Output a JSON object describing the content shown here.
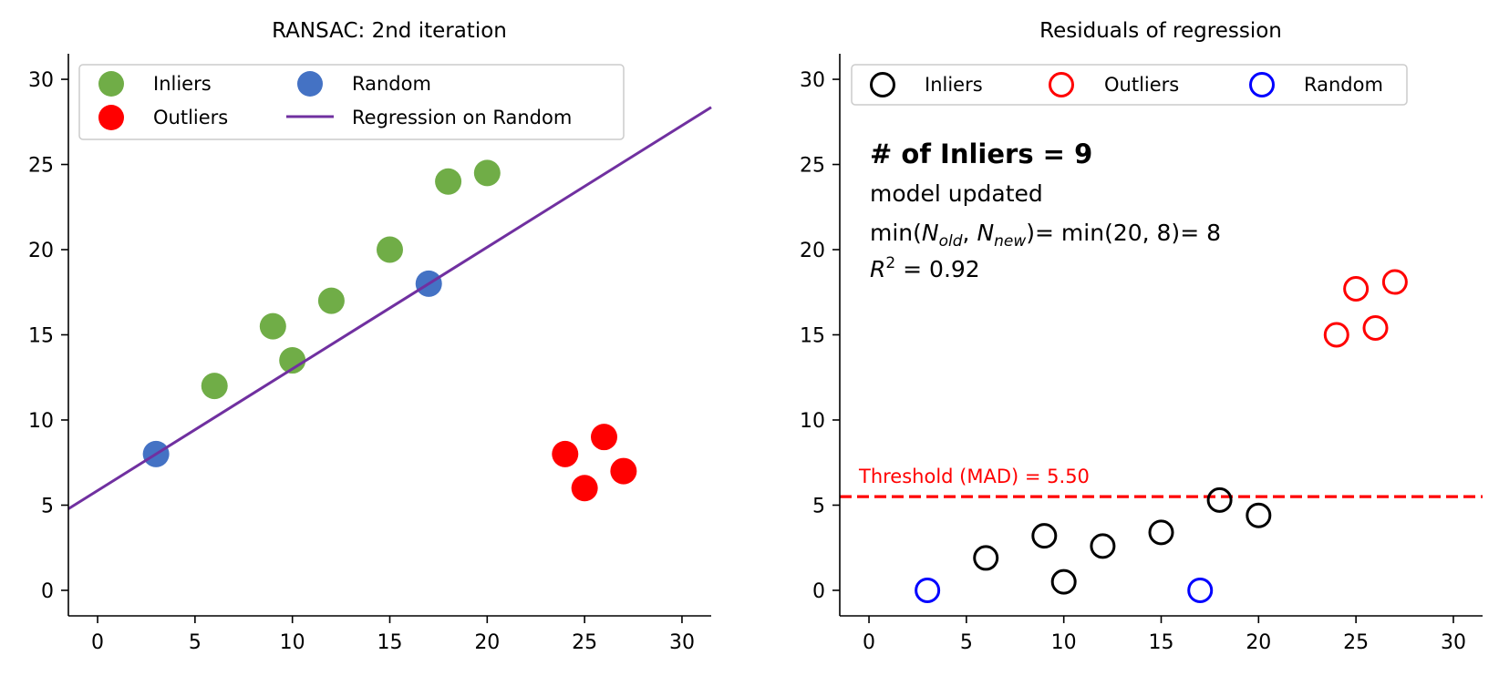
{
  "chart_data": [
    {
      "type": "scatter",
      "title": "RANSAC: 2nd iteration",
      "xlabel": "",
      "ylabel": "",
      "xlim": [
        -1.5,
        31.5
      ],
      "ylim": [
        -1.5,
        31.5
      ],
      "xticks": [
        0,
        5,
        10,
        15,
        20,
        25,
        30
      ],
      "yticks": [
        0,
        5,
        10,
        15,
        20,
        25,
        30
      ],
      "grid": false,
      "legend": {
        "placement": "top-left",
        "columns": 2,
        "entries": [
          {
            "label": "Inliers",
            "kind": "marker-filled",
            "color": "#70ad47"
          },
          {
            "label": "Outliers",
            "kind": "marker-filled",
            "color": "#ff0000"
          },
          {
            "label": "Random",
            "kind": "marker-filled",
            "color": "#4472c4"
          },
          {
            "label": "Regression on Random",
            "kind": "line",
            "color": "#7030a0"
          }
        ]
      },
      "series": [
        {
          "name": "Inliers",
          "color": "#70ad47",
          "points": [
            [
              6,
              12
            ],
            [
              9,
              15.5
            ],
            [
              10,
              13.5
            ],
            [
              12,
              17
            ],
            [
              15,
              20
            ],
            [
              18,
              24
            ],
            [
              20,
              24.5
            ]
          ]
        },
        {
          "name": "Outliers",
          "color": "#ff0000",
          "points": [
            [
              24,
              8
            ],
            [
              25,
              6
            ],
            [
              26,
              9
            ],
            [
              27,
              7
            ]
          ]
        },
        {
          "name": "Random",
          "color": "#4472c4",
          "points": [
            [
              3,
              8
            ],
            [
              17,
              18
            ]
          ]
        },
        {
          "name": "Regression on Random",
          "type": "line",
          "color": "#7030a0",
          "slope": 0.7143,
          "intercept": 5.857
        }
      ]
    },
    {
      "type": "scatter",
      "title": "Residuals of regression",
      "xlabel": "",
      "ylabel": "",
      "xlim": [
        -1.5,
        31.5
      ],
      "ylim": [
        -1.5,
        31.5
      ],
      "xticks": [
        0,
        5,
        10,
        15,
        20,
        25,
        30
      ],
      "yticks": [
        0,
        5,
        10,
        15,
        20,
        25,
        30
      ],
      "grid": false,
      "legend": {
        "placement": "top-left",
        "columns": 3,
        "entries": [
          {
            "label": "Inliers",
            "kind": "marker-open",
            "color": "#000000"
          },
          {
            "label": "Outliers",
            "kind": "marker-open",
            "color": "#ff0000"
          },
          {
            "label": "Random",
            "kind": "marker-open",
            "color": "#0000ff"
          }
        ]
      },
      "series": [
        {
          "name": "Inliers",
          "color": "#000000",
          "points": [
            [
              6,
              1.9
            ],
            [
              9,
              3.2
            ],
            [
              10,
              0.5
            ],
            [
              12,
              2.6
            ],
            [
              15,
              3.4
            ],
            [
              18,
              5.3
            ],
            [
              20,
              4.4
            ]
          ]
        },
        {
          "name": "Outliers",
          "color": "#ff0000",
          "points": [
            [
              24,
              15
            ],
            [
              25,
              17.7
            ],
            [
              26,
              15.4
            ],
            [
              27,
              18.1
            ]
          ]
        },
        {
          "name": "Random",
          "color": "#0000ff",
          "points": [
            [
              3,
              0
            ],
            [
              17,
              0
            ]
          ]
        }
      ],
      "threshold": {
        "value": 5.5,
        "label": "Threshold (MAD) = 5.50",
        "color": "#ff0000",
        "style": "dashed"
      },
      "annotations": {
        "inliers_count": "# of Inliers = 9",
        "status": "model updated",
        "min_prefix": "min(",
        "n_sym": "N",
        "sub_old": "old",
        "comma": ", ",
        "sub_new": "new",
        "min_suffix": ")= min(20, 8)= 8",
        "r2_sym": "R",
        "r2_sup": "2",
        "r2_value": " = 0.92"
      }
    }
  ]
}
